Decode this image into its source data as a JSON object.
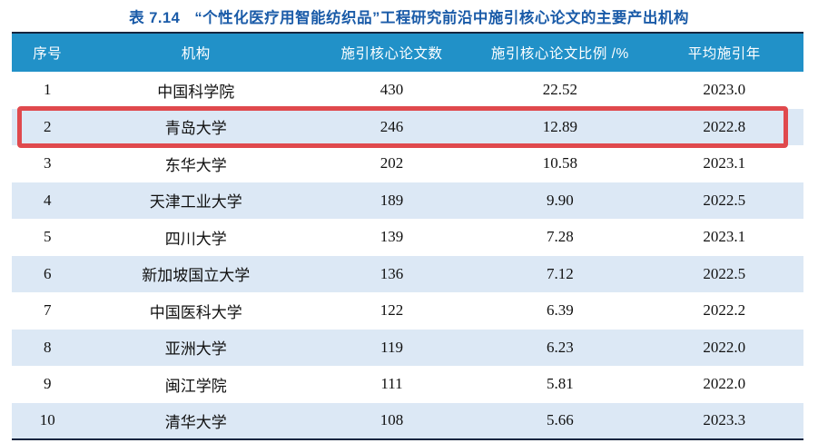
{
  "title": {
    "label": "表 7.14",
    "text": "“个性化医疗用智能纺织品”工程研究前沿中施引核心论文的主要产出机构"
  },
  "table": {
    "columns": [
      "序号",
      "机构",
      "施引核心论文数",
      "施引核心论文比例 /%",
      "平均施引年"
    ],
    "column_keys": [
      "rank",
      "institution",
      "citing-core-paper-count",
      "citing-core-paper-ratio",
      "mean-citing-year"
    ],
    "rows": [
      [
        "1",
        "中国科学院",
        "430",
        "22.52",
        "2023.0"
      ],
      [
        "2",
        "青岛大学",
        "246",
        "12.89",
        "2022.8"
      ],
      [
        "3",
        "东华大学",
        "202",
        "10.58",
        "2023.1"
      ],
      [
        "4",
        "天津工业大学",
        "189",
        "9.90",
        "2022.5"
      ],
      [
        "5",
        "四川大学",
        "139",
        "7.28",
        "2023.1"
      ],
      [
        "6",
        "新加坡国立大学",
        "136",
        "7.12",
        "2022.5"
      ],
      [
        "7",
        "中国医科大学",
        "122",
        "6.39",
        "2022.2"
      ],
      [
        "8",
        "亚洲大学",
        "119",
        "6.23",
        "2022.0"
      ],
      [
        "9",
        "闽江学院",
        "111",
        "5.81",
        "2022.0"
      ],
      [
        "10",
        "清华大学",
        "108",
        "5.66",
        "2023.3"
      ]
    ],
    "highlighted_row_index": 1,
    "highlighted_institution": "青岛大学"
  },
  "colors": {
    "header_bg": "#2191c8",
    "stripe_bg": "#dce8f5",
    "title_color": "#1a5ba8",
    "border_dark": "#15253f",
    "highlight_border": "#e0494d",
    "header_text": "#ffffff",
    "cell_text": "#111111"
  }
}
